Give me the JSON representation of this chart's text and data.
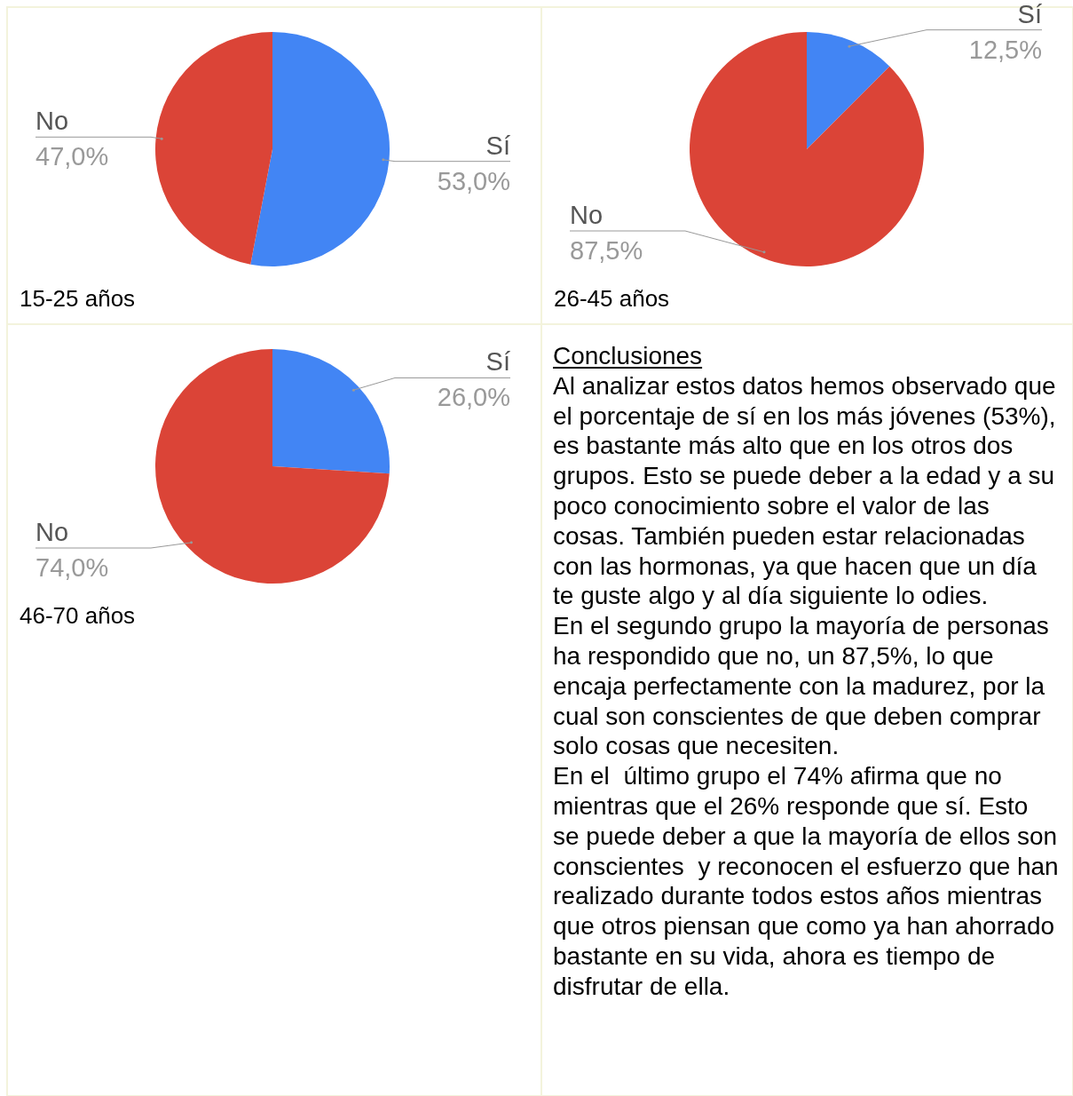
{
  "chart_data": [
    {
      "type": "pie",
      "title": "15-25 años",
      "categories": [
        "Sí",
        "No"
      ],
      "values": [
        53.0,
        47.0
      ],
      "colors": [
        "#4285f4",
        "#db4437"
      ],
      "value_labels": [
        "53,0%",
        "47,0%"
      ]
    },
    {
      "type": "pie",
      "title": "26-45 años",
      "categories": [
        "Sí",
        "No"
      ],
      "values": [
        12.5,
        87.5
      ],
      "colors": [
        "#4285f4",
        "#db4437"
      ],
      "value_labels": [
        "12,5%",
        "87,5%"
      ]
    },
    {
      "type": "pie",
      "title": "46-70 años",
      "categories": [
        "Sí",
        "No"
      ],
      "values": [
        26.0,
        74.0
      ],
      "colors": [
        "#4285f4",
        "#db4437"
      ],
      "value_labels": [
        "26,0%",
        "74,0%"
      ]
    },
    {
      "type": "other",
      "title": "Conclusiones",
      "annotations": [
        "Al analizar estos datos hemos observado que el porcentaje de sí en los más jóvenes (53%), es bastante más alto que en los otros dos grupos. Esto se puede deber a la edad y a su poco conocimiento sobre el valor de las cosas. También pueden estar relacionadas con las hormonas, ya que hacen que un día te guste algo y al día siguiente lo odies.",
        "En el segundo grupo la mayoría de personas ha respondido que no, un 87,5%, lo que encaja perfectamente con la madurez, por la cual son conscientes de que deben comprar solo cosas que necesiten.",
        "En el  último grupo el 74% afirma que no mientras que el 26% responde que sí. Esto se puede deber a que la mayoría de ellos son conscientes  y reconocen el esfuerzo que han realizado durante todos estos años mientras que otros piensan que como ya han ahorrado bastante en su vida, ahora es tiempo de disfrutar de ella."
      ]
    }
  ]
}
